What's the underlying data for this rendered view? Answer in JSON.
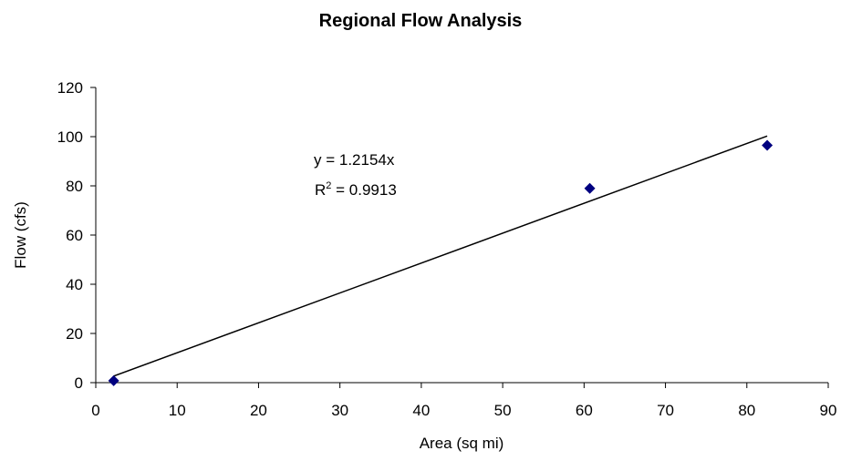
{
  "chart_data": {
    "type": "scatter",
    "title": "Regional Flow Analysis",
    "xlabel": "Area (sq mi)",
    "ylabel": "Flow (cfs)",
    "xlim": [
      0,
      90
    ],
    "ylim": [
      0,
      120
    ],
    "xticks": [
      0,
      10,
      20,
      30,
      40,
      50,
      60,
      70,
      80,
      90
    ],
    "yticks": [
      0,
      20,
      40,
      60,
      80,
      100,
      120
    ],
    "grid": false,
    "legend": "none",
    "series": [
      {
        "marker": "diamond",
        "color": "#000080",
        "points": [
          {
            "x": 2.2,
            "y": 0.8
          },
          {
            "x": 60.7,
            "y": 79.0
          },
          {
            "x": 82.5,
            "y": 96.5
          }
        ]
      }
    ],
    "trendline": {
      "type": "linear",
      "slope": 1.2154,
      "intercept": 0,
      "x_range": [
        2.2,
        82.5
      ],
      "color": "#000000",
      "equation_text": "y = 1.2154x",
      "r2_label": "R",
      "r2_superscript": "2",
      "r2_value_text": " = 0.9913"
    }
  }
}
